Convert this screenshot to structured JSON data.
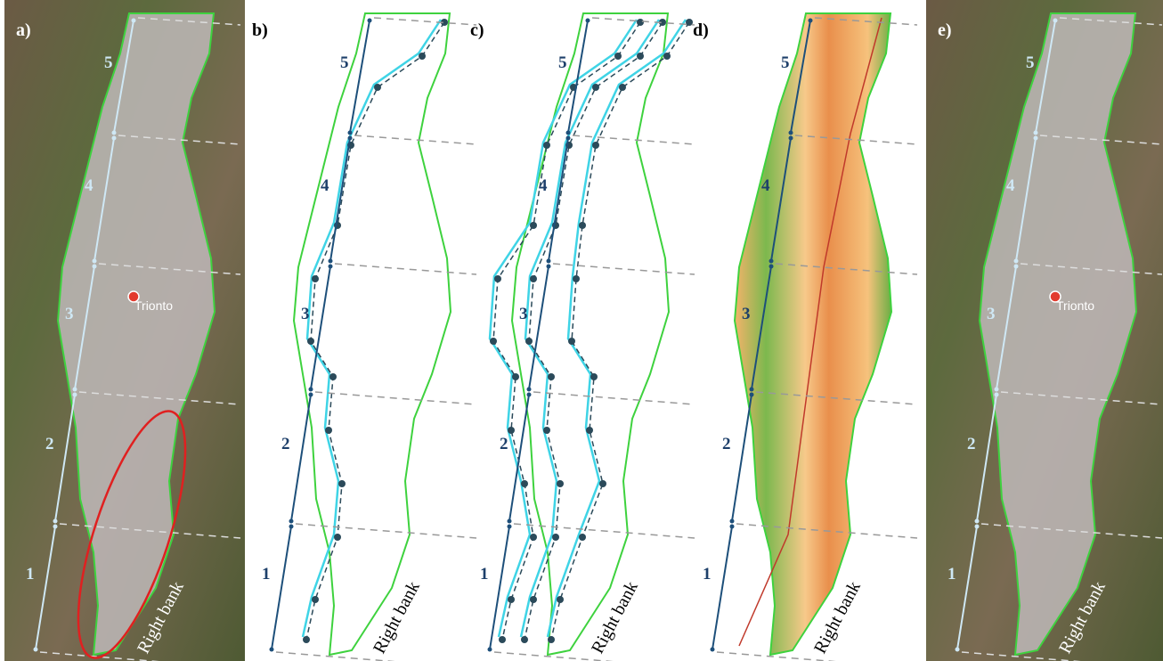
{
  "panels": [
    {
      "label": "a)",
      "segments": [
        5,
        4,
        3,
        2,
        1
      ],
      "bank_label": "Right bank",
      "place_label": "Trionto"
    },
    {
      "label": "b)",
      "segments": [
        5,
        4,
        3,
        2,
        1
      ],
      "bank_label": "Right bank"
    },
    {
      "label": "c)",
      "segments": [
        5,
        4,
        3,
        2,
        1
      ],
      "bank_label": "Right bank"
    },
    {
      "label": "d)",
      "segments": [
        5,
        4,
        3,
        2,
        1
      ],
      "bank_label": "Right bank"
    },
    {
      "label": "e)",
      "segments": [
        5,
        4,
        3,
        2,
        1
      ],
      "bank_label": "Right bank",
      "place_label": "Trionto"
    }
  ]
}
